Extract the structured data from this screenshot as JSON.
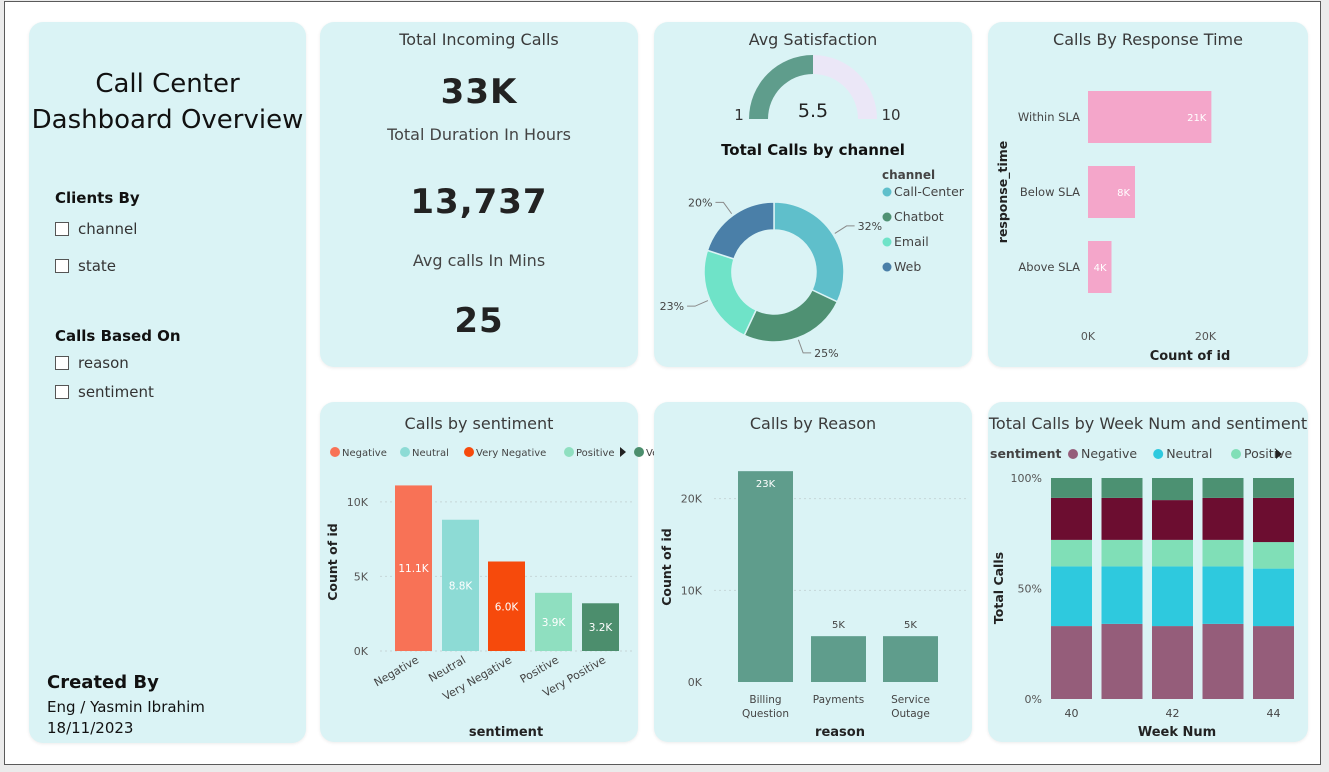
{
  "left_panel": {
    "title_line1": "Call Center",
    "title_line2": "Dashboard Overview",
    "clients_by": {
      "label": "Clients By",
      "options": [
        "channel",
        "state"
      ]
    },
    "calls_based_on": {
      "label": "Calls Based On",
      "options": [
        "reason",
        "sentiment"
      ]
    },
    "created_by": {
      "label": "Created By",
      "author": "Eng / Yasmin Ibrahim",
      "date": "18/11/2023"
    }
  },
  "kpis": {
    "title": "Total Incoming Calls",
    "total_calls": "33K",
    "duration_label": "Total Duration In Hours",
    "duration_value": "13,737",
    "avg_label": "Avg calls In Mins",
    "avg_value": "25"
  },
  "colors": {
    "card_bg": "#daf3f5",
    "call_center": "#5fbfcb",
    "chatbot": "#4f9173",
    "email": "#6fe3c8",
    "web": "#4a7fa8",
    "response_bar": "#f4a6ca",
    "reason_bar": "#5f9d8c",
    "sent_negative": "#f87256",
    "sent_neutral": "#8ddbd5",
    "sent_very_negative": "#f64a0c",
    "sent_positive": "#8fdfc0",
    "sent_very_positive": "#4c8e6d",
    "stack_negative": "#955d7a",
    "stack_neutral": "#2ec9de",
    "stack_positive": "#80dfb7",
    "stack_very_negative": "#6c0d30",
    "stack_very_positive": "#4c9172",
    "gauge_fill": "#5f9d8c",
    "gauge_empty": "#ebe7f7"
  },
  "chart_data": [
    {
      "id": "gauge",
      "type": "gauge",
      "title": "Avg Satisfaction",
      "value": 5.5,
      "min": 1,
      "max": 10,
      "value_label": "5.5",
      "min_label": "1",
      "max_label": "10"
    },
    {
      "id": "channel",
      "type": "pie",
      "title": "Total Calls by channel",
      "legend_title": "channel",
      "legend_placement": "right",
      "categories": [
        "Call-Center",
        "Chatbot",
        "Email",
        "Web"
      ],
      "values": [
        32,
        25,
        23,
        20
      ],
      "labels": [
        "32%",
        "25%",
        "23%",
        "20%"
      ]
    },
    {
      "id": "response",
      "type": "bar",
      "orientation": "horizontal",
      "title": "Calls By Response Time",
      "xlabel": "Count of id",
      "ylabel": "response_time",
      "categories": [
        "Within SLA",
        "Below SLA",
        "Above SLA"
      ],
      "values": [
        21000,
        8000,
        4000
      ],
      "data_labels": [
        "21K",
        "8K",
        "4K"
      ],
      "xlim": [
        0,
        24000
      ],
      "xticks": [
        0,
        20000
      ],
      "xtick_labels": [
        "0K",
        "20K"
      ]
    },
    {
      "id": "sentiment",
      "type": "bar",
      "title": "Calls by sentiment",
      "xlabel": "sentiment",
      "ylabel": "Count of id",
      "legend_placement": "top",
      "categories": [
        "Negative",
        "Neutral",
        "Very Negative",
        "Positive",
        "Very Positive"
      ],
      "values": [
        11100,
        8800,
        6000,
        3900,
        3200
      ],
      "data_labels": [
        "11.1K",
        "8.8K",
        "6.0K",
        "3.9K",
        "3.2K"
      ],
      "ylim": [
        0,
        12000
      ],
      "yticks": [
        0,
        5000,
        10000
      ],
      "ytick_labels": [
        "0K",
        "5K",
        "10K"
      ],
      "grid": true
    },
    {
      "id": "reason",
      "type": "bar",
      "title": "Calls by Reason",
      "xlabel": "reason",
      "ylabel": "Count of id",
      "categories": [
        [
          "Billing",
          "Question"
        ],
        [
          "Payments"
        ],
        [
          "Service",
          "Outage"
        ]
      ],
      "values": [
        23000,
        5000,
        5000
      ],
      "data_labels": [
        "23K",
        "5K",
        "5K"
      ],
      "ylim": [
        0,
        24000
      ],
      "yticks": [
        0,
        10000,
        20000
      ],
      "ytick_labels": [
        "0K",
        "10K",
        "20K"
      ],
      "grid": true
    },
    {
      "id": "weekly",
      "type": "bar",
      "stacked": "100%",
      "title": "Total Calls by Week Num and sentiment",
      "xlabel": "Week Num",
      "ylabel": "Total Calls",
      "legend_title": "sentiment",
      "legend_placement": "top",
      "legend_entries": [
        "Negative",
        "Neutral",
        "Positive"
      ],
      "x": [
        40,
        41,
        42,
        43,
        44
      ],
      "xtick_labels": [
        "40",
        "",
        "42",
        "",
        "44"
      ],
      "ytick_labels": [
        "0%",
        "50%",
        "100%"
      ],
      "series": [
        {
          "name": "Negative",
          "values": [
            33,
            34,
            33,
            34,
            33
          ]
        },
        {
          "name": "Neutral",
          "values": [
            27,
            26,
            27,
            26,
            26
          ]
        },
        {
          "name": "Positive",
          "values": [
            12,
            12,
            12,
            12,
            12
          ]
        },
        {
          "values": [
            19,
            19,
            18,
            19,
            20
          ]
        },
        {
          "values": [
            9,
            9,
            10,
            9,
            9
          ]
        }
      ]
    }
  ]
}
